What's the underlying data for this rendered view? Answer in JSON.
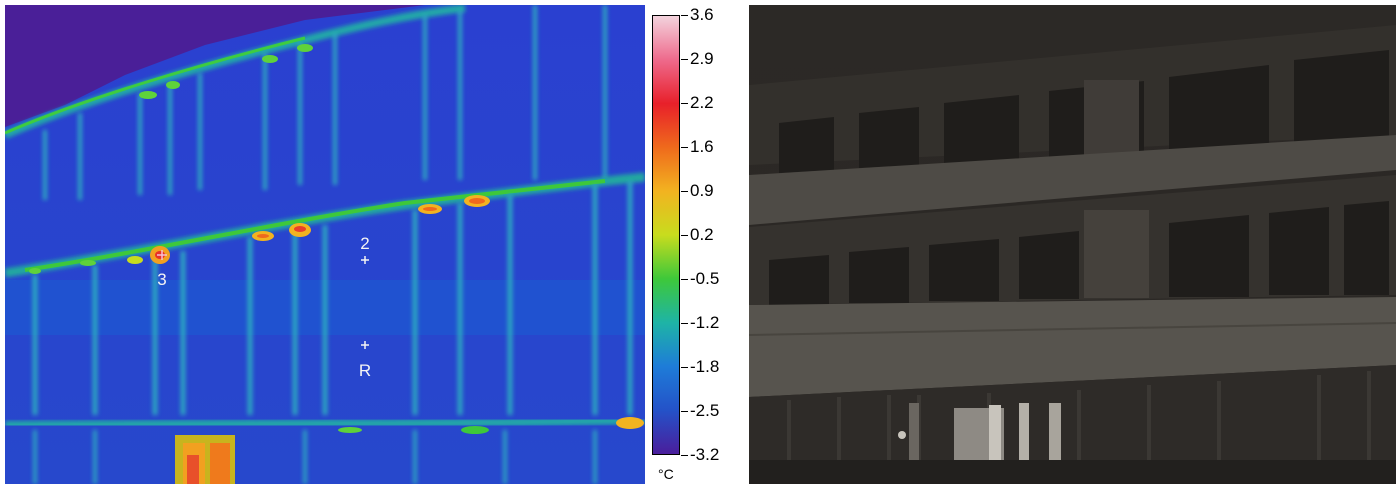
{
  "thermal_image": {
    "markers": [
      {
        "id": "marker-2",
        "label": "2"
      },
      {
        "id": "marker-3",
        "label": "3"
      },
      {
        "id": "marker-r",
        "label": "R"
      }
    ]
  },
  "color_scale": {
    "unit": "°C",
    "ticks": [
      "3.6",
      "2.9",
      "2.2",
      "1.6",
      "0.9",
      "0.2",
      "-0.5",
      "-1.2",
      "-1.8",
      "-2.5",
      "-3.2"
    ],
    "range": [
      -3.2,
      3.6
    ],
    "gradient_colors": [
      "#f3d3dd",
      "#ee6a8c",
      "#e8202a",
      "#ef6a1c",
      "#f2b320",
      "#c8dc1e",
      "#3ec83a",
      "#1eb4a6",
      "#1e7cd8",
      "#2452c8",
      "#4a1e9c"
    ]
  },
  "photo": {
    "description_colors": {
      "sky": "#2d2a27",
      "facade": "#3f3c38",
      "band": "#55524c",
      "window": "#1f1d1b"
    }
  }
}
